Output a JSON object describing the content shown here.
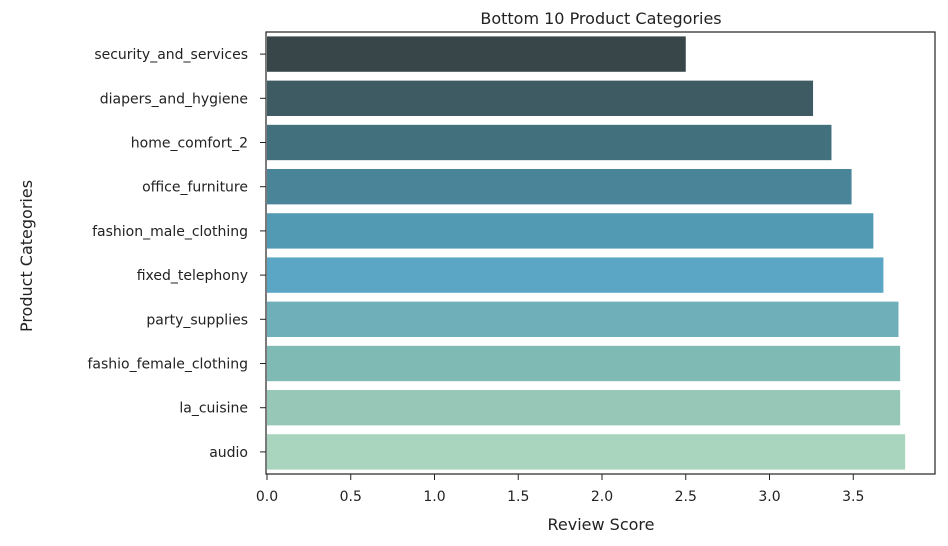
{
  "chart_data": {
    "type": "bar",
    "orientation": "horizontal",
    "title": "Bottom 10 Product Categories",
    "xlabel": "Review Score",
    "ylabel": "Product Categories",
    "xlim": [
      0,
      3.85
    ],
    "xticks": [
      "0.0",
      "0.5",
      "1.0",
      "1.5",
      "2.0",
      "2.5",
      "3.0",
      "3.5"
    ],
    "grid": false,
    "categories": [
      "security_and_services",
      "diapers_and_hygiene",
      "home_comfort_2",
      "office_furniture",
      "fashion_male_clothing",
      "fixed_telephony",
      "party_supplies",
      "fashio_female_clothing",
      "la_cuisine",
      "audio"
    ],
    "values": [
      2.5,
      3.26,
      3.37,
      3.49,
      3.62,
      3.68,
      3.77,
      3.78,
      3.78,
      3.81
    ],
    "colors": [
      "#384549",
      "#3e5a63",
      "#43707d",
      "#4a8498",
      "#529ab3",
      "#5aa6c4",
      "#6eafba",
      "#7fbab5",
      "#96c7b7",
      "#a9d4bd"
    ]
  }
}
